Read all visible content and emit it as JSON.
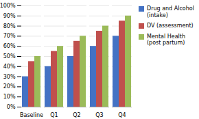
{
  "chart_data": {
    "type": "bar",
    "categories": [
      "Baseline",
      "Q1",
      "Q2",
      "Q3",
      "Q4"
    ],
    "series": [
      {
        "name": "Drug and Alcohol\n(intake)",
        "color": "#4472C4",
        "values": [
          0.3,
          0.4,
          0.5,
          0.6,
          0.7
        ]
      },
      {
        "name": "DV (assessment)",
        "color": "#C0504D",
        "values": [
          0.45,
          0.55,
          0.65,
          0.75,
          0.85
        ]
      },
      {
        "name": "Mental Health\n(post partum)",
        "color": "#9BBB59",
        "values": [
          0.5,
          0.6,
          0.7,
          0.8,
          0.9
        ]
      }
    ],
    "ylim": [
      0,
      1.0
    ],
    "yticks": [
      {
        "value": 0,
        "label": "0%"
      },
      {
        "value": 0.1,
        "label": "10%"
      },
      {
        "value": 0.2,
        "label": "20%"
      },
      {
        "value": 0.3,
        "label": "30%"
      },
      {
        "value": 0.4,
        "label": "40%"
      },
      {
        "value": 0.5,
        "label": "50%"
      },
      {
        "value": 0.6,
        "label": "60%"
      },
      {
        "value": 0.7,
        "label": "70%"
      },
      {
        "value": 0.8,
        "label": "80%"
      },
      {
        "value": 0.9,
        "label": "90%"
      },
      {
        "value": 1.0,
        "label": "100%"
      }
    ],
    "grid": true,
    "legend": "right"
  }
}
